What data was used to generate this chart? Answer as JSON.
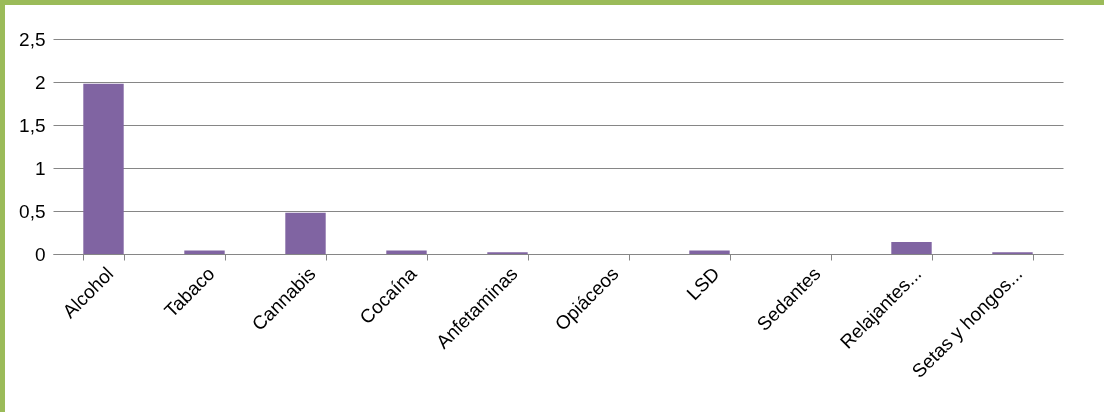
{
  "chart_data": {
    "type": "bar",
    "categories": [
      "Alcohol",
      "Tabaco",
      "Cannabis",
      "Cocaína",
      "Anfetaminas",
      "Opiáceos",
      "LSD",
      "Sedantes",
      "Relajantes...",
      "Setas y hongos..."
    ],
    "values": [
      1.98,
      0.04,
      0.48,
      0.04,
      0.02,
      0,
      0.04,
      0,
      0.14,
      0.02
    ],
    "color": "#8064a2",
    "ylim": [
      0,
      2.5
    ],
    "yticks": [
      0,
      {
        "value": 0.5,
        "label": "0,5"
      },
      1,
      {
        "value": 1.5,
        "label": "1,5"
      },
      2,
      {
        "value": 2.5,
        "label": "2,5"
      }
    ],
    "grid": "y"
  }
}
